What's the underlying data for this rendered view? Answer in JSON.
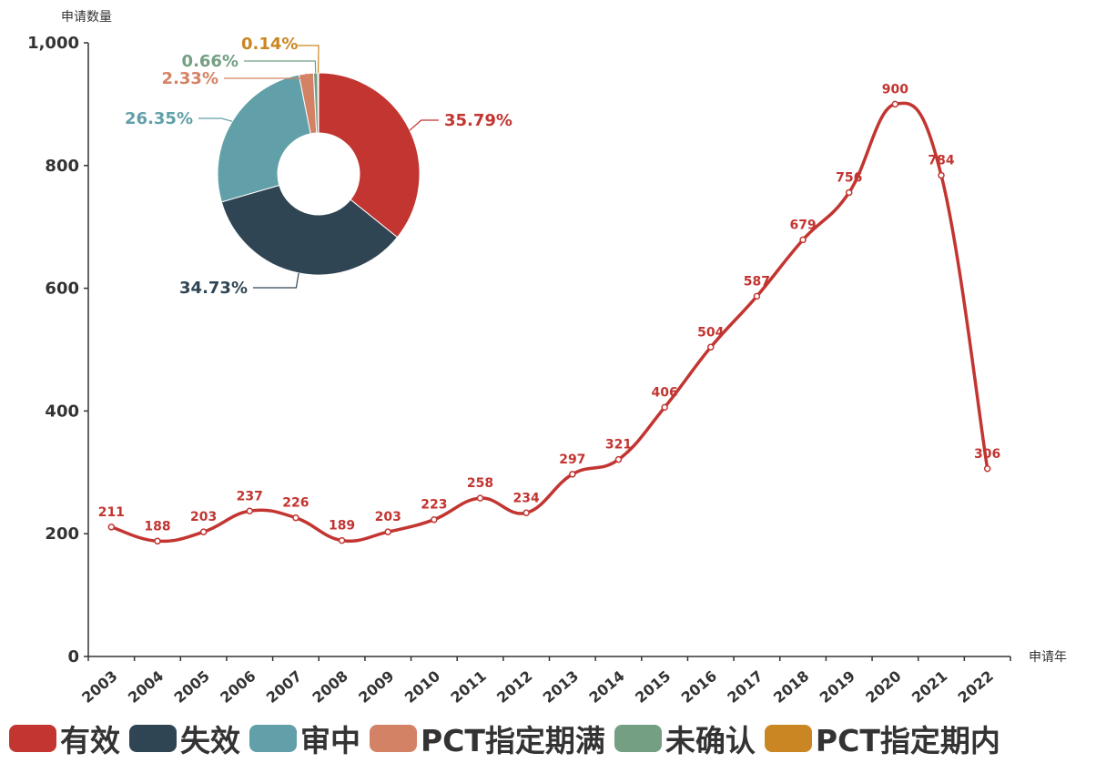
{
  "chart_data": [
    {
      "type": "line",
      "ylabel": "申请数量",
      "xlabel": "申请年",
      "ylim": [
        0,
        1000
      ],
      "yticks": [
        "0",
        "200",
        "400",
        "600",
        "800",
        "1,000"
      ],
      "grid": false,
      "smooth": true,
      "color": "#c23531",
      "categories": [
        "2003",
        "2004",
        "2005",
        "2006",
        "2007",
        "2008",
        "2009",
        "2010",
        "2011",
        "2012",
        "2013",
        "2014",
        "2015",
        "2016",
        "2017",
        "2018",
        "2019",
        "2020",
        "2021",
        "2022"
      ],
      "values": [
        211,
        188,
        203,
        237,
        226,
        189,
        203,
        223,
        258,
        234,
        297,
        321,
        406,
        504,
        587,
        679,
        756,
        900,
        784,
        306
      ]
    },
    {
      "type": "pie",
      "subtype": "donut",
      "slices": [
        {
          "label": "35.79%",
          "value": 35.79,
          "color": "#c23531"
        },
        {
          "label": "34.73%",
          "value": 34.73,
          "color": "#2f4554"
        },
        {
          "label": "26.35%",
          "value": 26.35,
          "color": "#61a0a8"
        },
        {
          "label": "2.33%",
          "value": 2.33,
          "color": "#d48265"
        },
        {
          "label": "0.66%",
          "value": 0.66,
          "color": "#749f83"
        },
        {
          "label": "0.14%",
          "value": 0.14,
          "color": "#ca8622"
        }
      ]
    }
  ],
  "legend": {
    "placement": "bottom",
    "items": [
      {
        "label": "有效",
        "color": "#c23531"
      },
      {
        "label": "失效",
        "color": "#2f4554"
      },
      {
        "label": "审中",
        "color": "#61a0a8"
      },
      {
        "label": "PCT指定期满",
        "color": "#d48265"
      },
      {
        "label": "未确认",
        "color": "#749f83"
      },
      {
        "label": "PCT指定期内",
        "color": "#ca8622"
      }
    ]
  }
}
